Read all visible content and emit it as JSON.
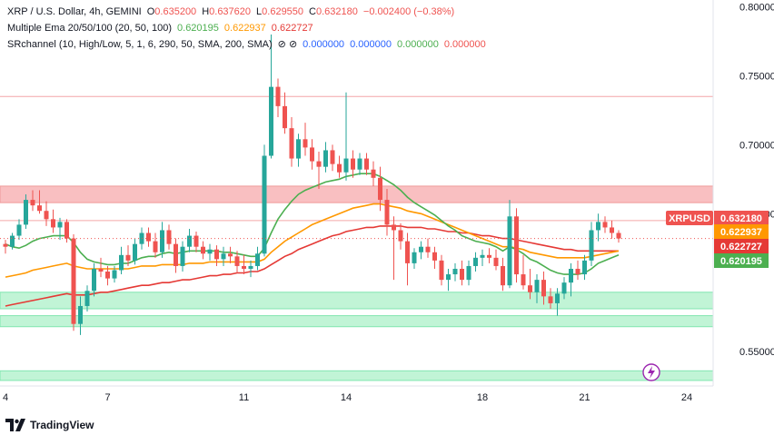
{
  "legend": {
    "symbol_line": "XRP / U.S. Dollar, 4h, GEMINI",
    "ohlc": {
      "o_label": "O",
      "o": "0.635200",
      "h_label": "H",
      "h": "0.637620",
      "l_label": "L",
      "l": "0.629550",
      "c_label": "C",
      "c": "0.632180",
      "change": "−0.002400 (−0.38%)"
    },
    "ema_line": "Multiple Ema 20/50/100 (20, 50, 100)",
    "ema_values": [
      "0.620195",
      "0.622937",
      "0.622727"
    ],
    "sr_line": "SRchannel (10, High/Low, 5, 1, 6, 290, 50, SMA, 200, SMA)",
    "sr_symbols": "⊘ ⊘",
    "sr_values": [
      "0.000000",
      "0.000000",
      "0.000000",
      "0.000000"
    ]
  },
  "brand": {
    "name": "TradingView",
    "logo_text": "17"
  },
  "colors": {
    "up": "#26a69a",
    "down": "#ef5350",
    "ema20": "#4caf50",
    "ema50": "#ff9800",
    "ema100": "#e53935",
    "sr_red": "#f8b4b6",
    "sr_green": "#b6f2cf",
    "price_tag": "#ef5350",
    "blue": "#2962ff",
    "purple": "#9c27b0"
  },
  "chart_data": {
    "type": "candlestick",
    "symbol": "XRPUSD",
    "ylim": [
      0.525,
      0.805
    ],
    "yticks": [
      "0.550000",
      "0.650000",
      "0.700000",
      "0.750000",
      "0.800000"
    ],
    "xticks": [
      {
        "label": "4",
        "index": 0
      },
      {
        "label": "7",
        "index": 15
      },
      {
        "label": "11",
        "index": 35
      },
      {
        "label": "14",
        "index": 50
      },
      {
        "label": "18",
        "index": 70
      },
      {
        "label": "21",
        "index": 85
      },
      {
        "label": "24",
        "index": 100
      }
    ],
    "candles": [
      [
        0.628,
        0.631,
        0.621,
        0.626
      ],
      [
        0.626,
        0.636,
        0.624,
        0.634
      ],
      [
        0.634,
        0.646,
        0.631,
        0.642
      ],
      [
        0.642,
        0.664,
        0.639,
        0.66
      ],
      [
        0.66,
        0.667,
        0.652,
        0.656
      ],
      [
        0.656,
        0.667,
        0.65,
        0.652
      ],
      [
        0.652,
        0.659,
        0.641,
        0.646
      ],
      [
        0.646,
        0.653,
        0.636,
        0.64
      ],
      [
        0.64,
        0.647,
        0.631,
        0.644
      ],
      [
        0.644,
        0.646,
        0.629,
        0.632
      ],
      [
        0.632,
        0.635,
        0.565,
        0.57
      ],
      [
        0.57,
        0.59,
        0.562,
        0.583
      ],
      [
        0.583,
        0.598,
        0.579,
        0.594
      ],
      [
        0.594,
        0.614,
        0.59,
        0.61
      ],
      [
        0.61,
        0.618,
        0.604,
        0.608
      ],
      [
        0.608,
        0.612,
        0.598,
        0.603
      ],
      [
        0.603,
        0.612,
        0.6,
        0.609
      ],
      [
        0.609,
        0.626,
        0.606,
        0.62
      ],
      [
        0.62,
        0.627,
        0.612,
        0.616
      ],
      [
        0.616,
        0.632,
        0.613,
        0.628
      ],
      [
        0.628,
        0.64,
        0.624,
        0.636
      ],
      [
        0.636,
        0.64,
        0.626,
        0.63
      ],
      [
        0.63,
        0.636,
        0.618,
        0.622
      ],
      [
        0.622,
        0.644,
        0.618,
        0.638
      ],
      [
        0.638,
        0.642,
        0.624,
        0.628
      ],
      [
        0.628,
        0.632,
        0.607,
        0.612
      ],
      [
        0.612,
        0.63,
        0.608,
        0.626
      ],
      [
        0.626,
        0.639,
        0.622,
        0.634
      ],
      [
        0.634,
        0.637,
        0.622,
        0.626
      ],
      [
        0.626,
        0.63,
        0.617,
        0.621
      ],
      [
        0.621,
        0.628,
        0.616,
        0.624
      ],
      [
        0.624,
        0.627,
        0.612,
        0.617
      ],
      [
        0.617,
        0.626,
        0.612,
        0.621
      ],
      [
        0.621,
        0.626,
        0.614,
        0.619
      ],
      [
        0.619,
        0.623,
        0.607,
        0.612
      ],
      [
        0.612,
        0.62,
        0.606,
        0.61
      ],
      [
        0.61,
        0.616,
        0.604,
        0.612
      ],
      [
        0.612,
        0.626,
        0.609,
        0.621
      ],
      [
        0.621,
        0.7,
        0.619,
        0.692
      ],
      [
        0.692,
        0.78,
        0.69,
        0.742
      ],
      [
        0.742,
        0.748,
        0.72,
        0.728
      ],
      [
        0.728,
        0.738,
        0.708,
        0.712
      ],
      [
        0.712,
        0.72,
        0.684,
        0.69
      ],
      [
        0.69,
        0.708,
        0.684,
        0.704
      ],
      [
        0.704,
        0.716,
        0.692,
        0.698
      ],
      [
        0.698,
        0.704,
        0.682,
        0.688
      ],
      [
        0.688,
        0.695,
        0.668,
        0.684
      ],
      [
        0.684,
        0.702,
        0.68,
        0.696
      ],
      [
        0.696,
        0.7,
        0.681,
        0.686
      ],
      [
        0.686,
        0.692,
        0.676,
        0.68
      ],
      [
        0.68,
        0.738,
        0.674,
        0.69
      ],
      [
        0.69,
        0.696,
        0.676,
        0.682
      ],
      [
        0.682,
        0.694,
        0.678,
        0.69
      ],
      [
        0.69,
        0.694,
        0.678,
        0.682
      ],
      [
        0.682,
        0.688,
        0.67,
        0.676
      ],
      [
        0.676,
        0.684,
        0.652,
        0.66
      ],
      [
        0.66,
        0.668,
        0.634,
        0.642
      ],
      [
        0.642,
        0.648,
        0.602,
        0.638
      ],
      [
        0.638,
        0.643,
        0.624,
        0.63
      ],
      [
        0.63,
        0.636,
        0.598,
        0.614
      ],
      [
        0.614,
        0.625,
        0.61,
        0.622
      ],
      [
        0.622,
        0.63,
        0.617,
        0.626
      ],
      [
        0.626,
        0.632,
        0.618,
        0.622
      ],
      [
        0.622,
        0.626,
        0.61,
        0.616
      ],
      [
        0.616,
        0.62,
        0.598,
        0.602
      ],
      [
        0.602,
        0.61,
        0.594,
        0.606
      ],
      [
        0.606,
        0.614,
        0.601,
        0.61
      ],
      [
        0.61,
        0.616,
        0.598,
        0.602
      ],
      [
        0.602,
        0.616,
        0.598,
        0.612
      ],
      [
        0.612,
        0.622,
        0.608,
        0.618
      ],
      [
        0.618,
        0.624,
        0.612,
        0.62
      ],
      [
        0.62,
        0.625,
        0.614,
        0.618
      ],
      [
        0.618,
        0.624,
        0.609,
        0.612
      ],
      [
        0.612,
        0.618,
        0.594,
        0.598
      ],
      [
        0.598,
        0.66,
        0.596,
        0.648
      ],
      [
        0.648,
        0.654,
        0.6,
        0.606
      ],
      [
        0.606,
        0.62,
        0.595,
        0.598
      ],
      [
        0.598,
        0.61,
        0.588,
        0.593
      ],
      [
        0.593,
        0.606,
        0.585,
        0.602
      ],
      [
        0.602,
        0.608,
        0.584,
        0.59
      ],
      [
        0.59,
        0.596,
        0.581,
        0.585
      ],
      [
        0.585,
        0.596,
        0.576,
        0.592
      ],
      [
        0.592,
        0.604,
        0.588,
        0.6
      ],
      [
        0.6,
        0.614,
        0.59,
        0.61
      ],
      [
        0.61,
        0.616,
        0.602,
        0.606
      ],
      [
        0.606,
        0.62,
        0.602,
        0.616
      ],
      [
        0.616,
        0.644,
        0.612,
        0.638
      ],
      [
        0.638,
        0.65,
        0.63,
        0.644
      ],
      [
        0.644,
        0.648,
        0.636,
        0.64
      ],
      [
        0.64,
        0.645,
        0.632,
        0.636
      ],
      [
        0.636,
        0.638,
        0.629,
        0.632
      ]
    ],
    "ema20": [
      0.628,
      0.626,
      0.625,
      0.627,
      0.63,
      0.632,
      0.633,
      0.634,
      0.634,
      0.634,
      0.629,
      0.622,
      0.617,
      0.615,
      0.614,
      0.613,
      0.613,
      0.614,
      0.614,
      0.616,
      0.618,
      0.619,
      0.619,
      0.621,
      0.622,
      0.621,
      0.622,
      0.623,
      0.623,
      0.623,
      0.623,
      0.623,
      0.622,
      0.622,
      0.621,
      0.62,
      0.619,
      0.619,
      0.625,
      0.636,
      0.646,
      0.653,
      0.659,
      0.664,
      0.667,
      0.669,
      0.671,
      0.673,
      0.674,
      0.675,
      0.677,
      0.678,
      0.679,
      0.679,
      0.679,
      0.677,
      0.674,
      0.671,
      0.667,
      0.662,
      0.658,
      0.655,
      0.652,
      0.649,
      0.645,
      0.641,
      0.638,
      0.634,
      0.632,
      0.63,
      0.629,
      0.628,
      0.626,
      0.623,
      0.626,
      0.624,
      0.621,
      0.617,
      0.615,
      0.612,
      0.609,
      0.607,
      0.606,
      0.606,
      0.606,
      0.607,
      0.61,
      0.614,
      0.616,
      0.618,
      0.62
    ],
    "ema50": [
      0.604,
      0.605,
      0.606,
      0.607,
      0.609,
      0.61,
      0.611,
      0.612,
      0.613,
      0.614,
      0.612,
      0.611,
      0.61,
      0.61,
      0.61,
      0.61,
      0.61,
      0.61,
      0.61,
      0.611,
      0.612,
      0.612,
      0.612,
      0.613,
      0.613,
      0.613,
      0.613,
      0.614,
      0.614,
      0.614,
      0.615,
      0.615,
      0.615,
      0.615,
      0.615,
      0.615,
      0.615,
      0.615,
      0.617,
      0.622,
      0.626,
      0.63,
      0.633,
      0.636,
      0.639,
      0.642,
      0.644,
      0.646,
      0.648,
      0.65,
      0.652,
      0.654,
      0.655,
      0.656,
      0.657,
      0.657,
      0.656,
      0.655,
      0.654,
      0.652,
      0.651,
      0.65,
      0.648,
      0.646,
      0.644,
      0.642,
      0.64,
      0.638,
      0.636,
      0.634,
      0.632,
      0.63,
      0.628,
      0.626,
      0.626,
      0.625,
      0.624,
      0.622,
      0.621,
      0.62,
      0.619,
      0.618,
      0.618,
      0.618,
      0.618,
      0.618,
      0.619,
      0.62,
      0.621,
      0.622,
      0.623
    ],
    "ema100": [
      0.583,
      0.584,
      0.585,
      0.586,
      0.587,
      0.588,
      0.589,
      0.59,
      0.591,
      0.592,
      0.591,
      0.591,
      0.591,
      0.592,
      0.593,
      0.593,
      0.594,
      0.595,
      0.596,
      0.597,
      0.598,
      0.598,
      0.599,
      0.6,
      0.6,
      0.601,
      0.602,
      0.602,
      0.603,
      0.604,
      0.605,
      0.605,
      0.606,
      0.606,
      0.607,
      0.607,
      0.608,
      0.608,
      0.61,
      0.613,
      0.616,
      0.619,
      0.621,
      0.624,
      0.626,
      0.628,
      0.63,
      0.632,
      0.634,
      0.635,
      0.637,
      0.638,
      0.639,
      0.64,
      0.64,
      0.641,
      0.641,
      0.641,
      0.641,
      0.64,
      0.64,
      0.64,
      0.639,
      0.639,
      0.638,
      0.637,
      0.637,
      0.636,
      0.636,
      0.635,
      0.634,
      0.634,
      0.633,
      0.632,
      0.632,
      0.631,
      0.63,
      0.629,
      0.628,
      0.627,
      0.626,
      0.625,
      0.624,
      0.624,
      0.623,
      0.623,
      0.623,
      0.623,
      0.623,
      0.623,
      0.623
    ],
    "sr_zones": [
      {
        "color": "red",
        "from": 0.658,
        "to": 0.67
      },
      {
        "color": "green",
        "from": 0.581,
        "to": 0.593
      },
      {
        "color": "green",
        "from": 0.568,
        "to": 0.576
      },
      {
        "color": "green",
        "from": 0.529,
        "to": 0.536
      }
    ],
    "sr_lines": [
      0.735,
      0.645
    ],
    "price_tags": [
      {
        "label": "XRPUSD",
        "value": "0.632180",
        "color": "#ef5350"
      },
      {
        "value": "0.622937",
        "color": "#ff9800"
      },
      {
        "value": "0.622727",
        "color": "#e53935"
      },
      {
        "value": "0.620195",
        "color": "#4caf50"
      }
    ],
    "dotted_line_value": 0.632
  }
}
